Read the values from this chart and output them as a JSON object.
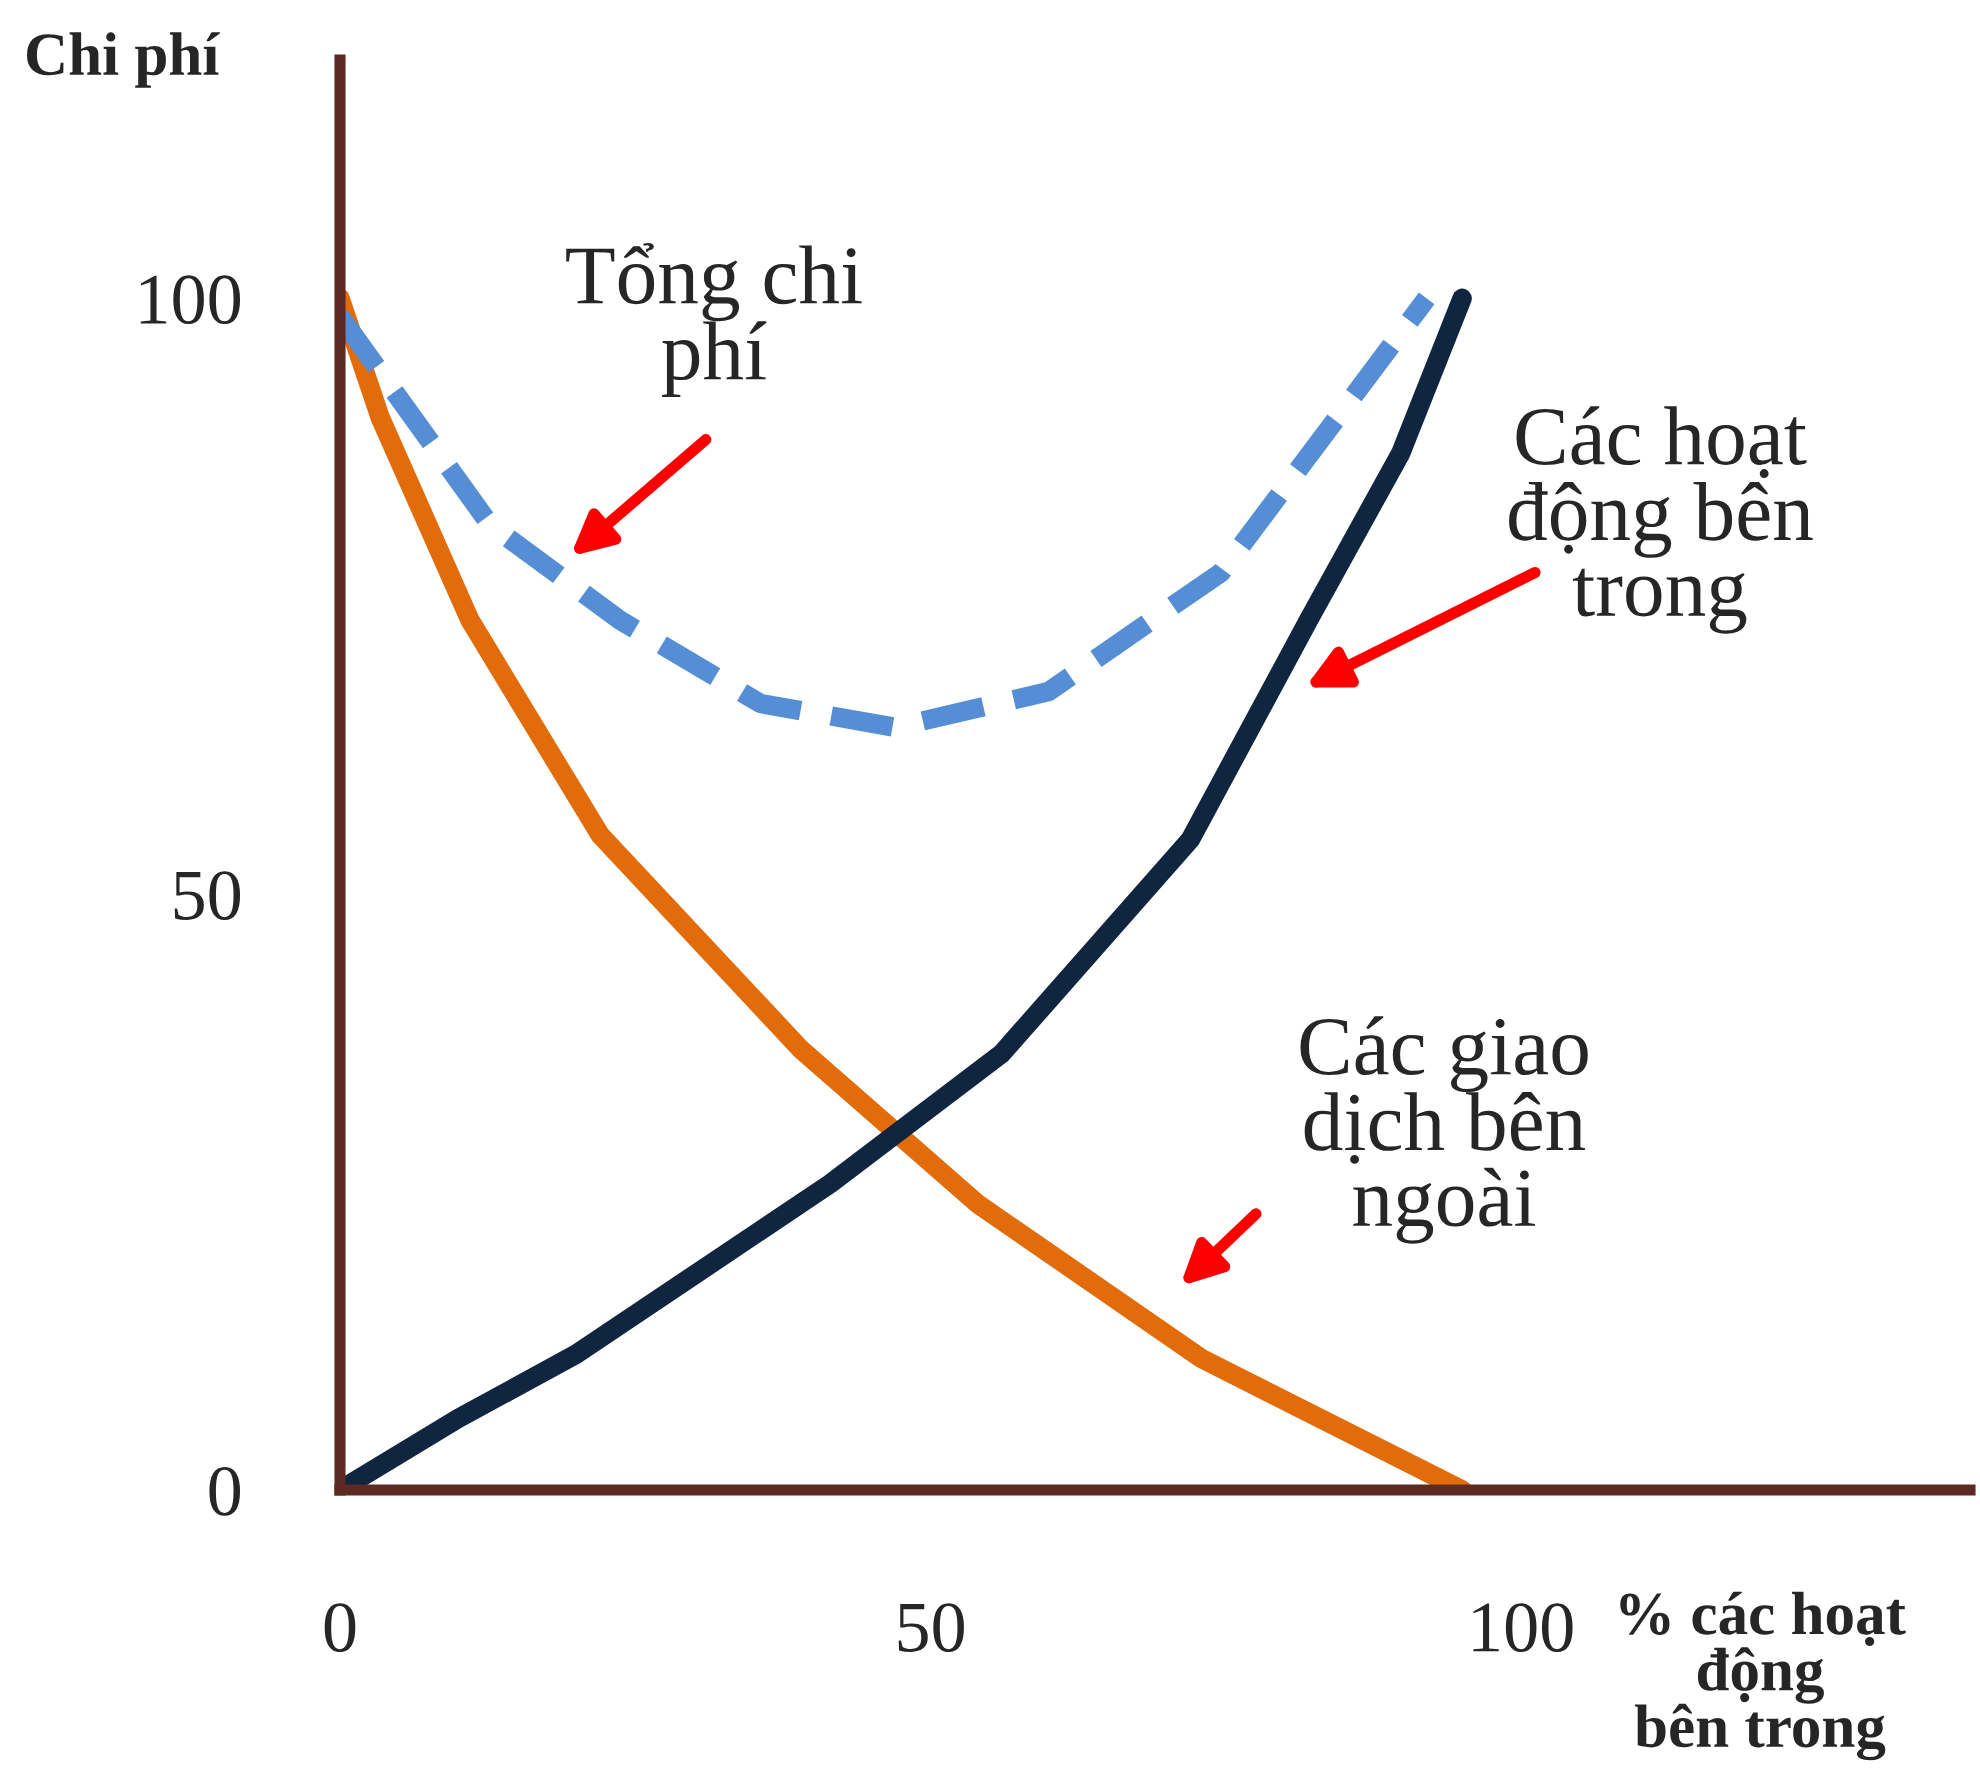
{
  "chart_data": {
    "type": "line",
    "xlabel": "% các hoạt động bên trong",
    "ylabel": "Chi phí",
    "xlim": [
      0,
      138
    ],
    "ylim": [
      0,
      120
    ],
    "xticks": [
      0,
      50,
      100
    ],
    "yticks": [
      0,
      50,
      100
    ],
    "grid": false,
    "legend": false,
    "series": [
      {
        "color": "#e36c0a",
        "line_style": "solid",
        "x": [
          0,
          3.4,
          11,
          22,
          39,
          54,
          73,
          95
        ],
        "values": [
          100,
          90,
          73,
          55,
          37,
          24,
          11,
          0
        ]
      },
      {
        "color": "#10253f",
        "line_style": "solid",
        "x": [
          0,
          10,
          20,
          41.5,
          56,
          72,
          82,
          89.8,
          95
        ],
        "values": [
          0,
          6,
          11.4,
          25.7,
          36.6,
          54.6,
          73,
          87,
          100
        ]
      },
      {
        "color": "#558ed5",
        "line_style": "dashed",
        "x": [
          0,
          12.7,
          23.7,
          35.6,
          47,
          60,
          74.6,
          92
        ],
        "values": [
          98.5,
          81,
          73,
          66,
          64,
          67,
          77,
          100
        ]
      }
    ],
    "annotations": [
      "Tổng chi\nphí",
      "Các hoạt\nđộng bên\ntrong",
      "Các giao\ndịch bên\nngoài"
    ]
  }
}
